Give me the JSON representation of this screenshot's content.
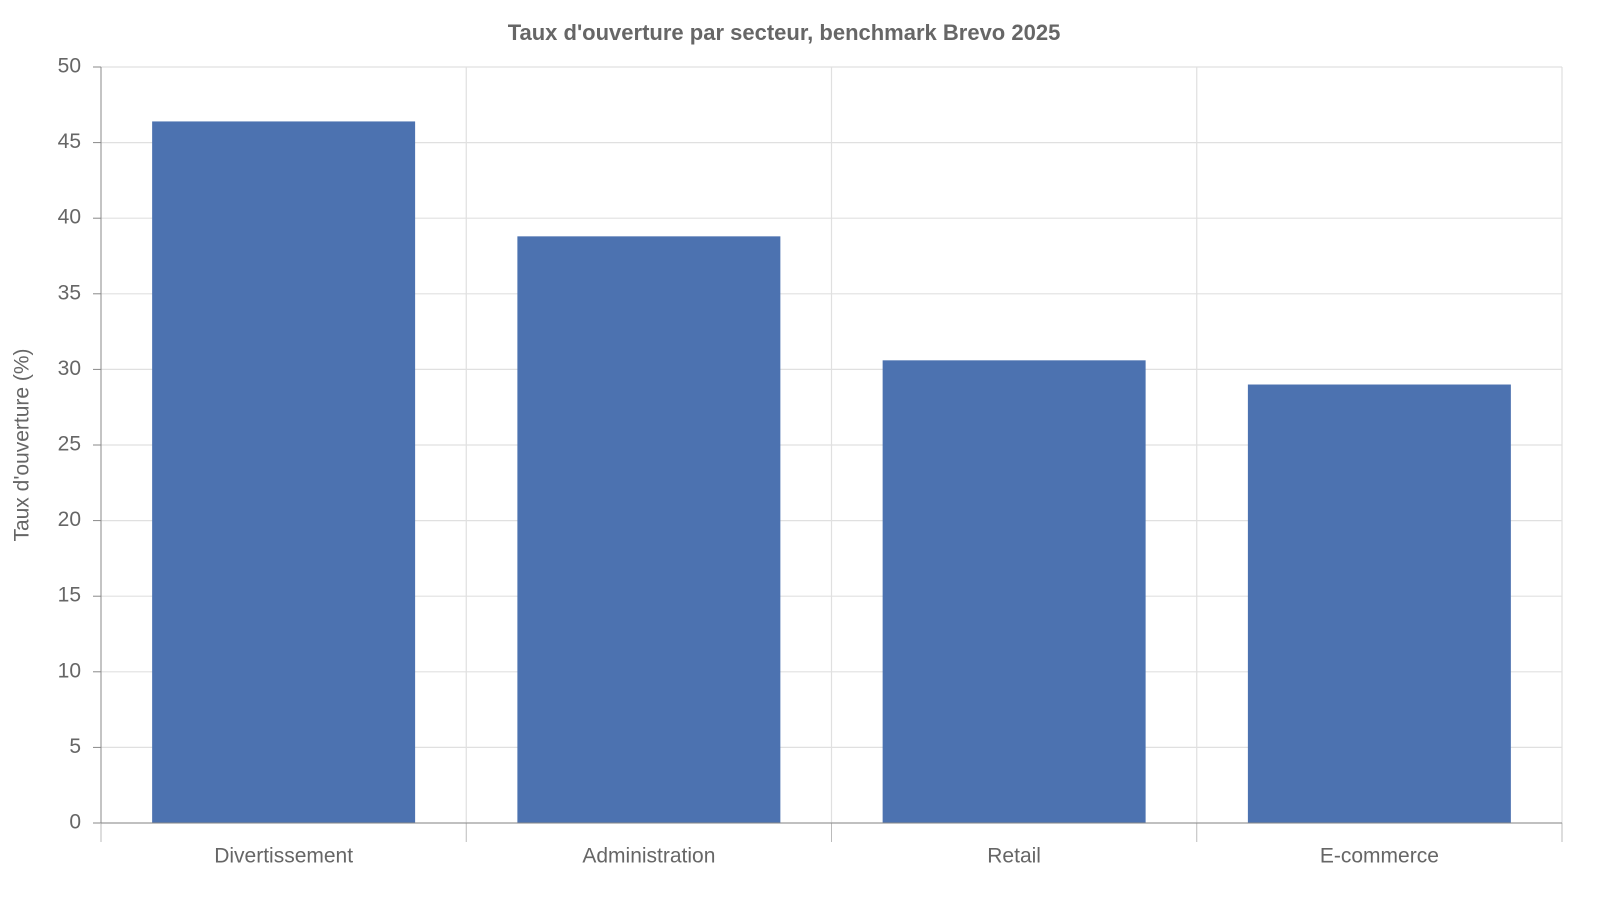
{
  "chart_data": {
    "type": "bar",
    "title": "Taux d'ouverture par secteur, benchmark Brevo 2025",
    "y_label": "Taux d'ouverture (%)",
    "categories": [
      "Divertissement",
      "Administration",
      "Retail",
      "E-commerce"
    ],
    "values": [
      46.4,
      38.8,
      30.6,
      29.0
    ],
    "color": "#4c72b0",
    "ylim": [
      0,
      50
    ],
    "yticks": [
      0,
      5,
      10,
      15,
      20,
      25,
      30,
      35,
      40,
      45,
      50
    ],
    "grid": true
  }
}
